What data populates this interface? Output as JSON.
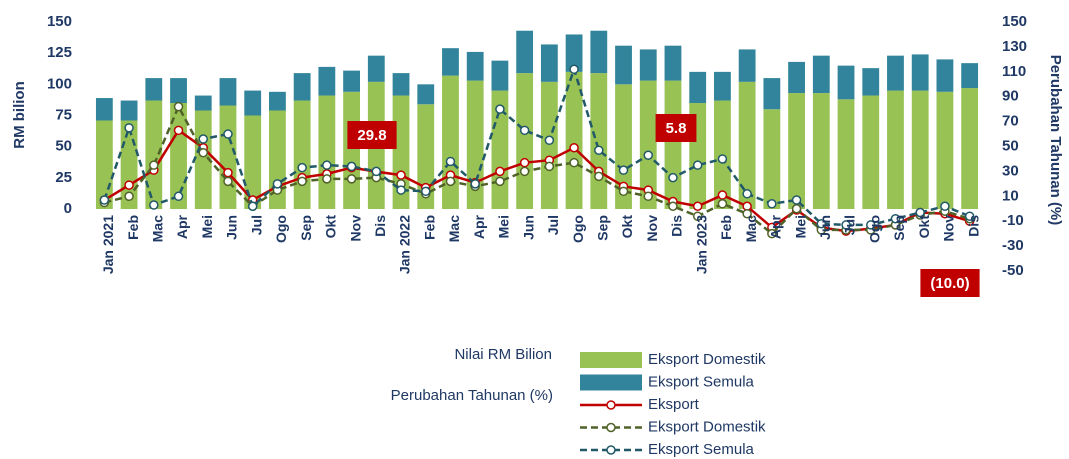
{
  "chart_data": {
    "type": "bar-line",
    "y_label": "RM bilion",
    "y2_label": "Perubahan Tahunan (%)",
    "legend_headings": [
      "Nilai RM Bilion",
      "Perubahan Tahunan (%)"
    ],
    "categories": [
      "Jan 2021",
      "Feb",
      "Mac",
      "Apr",
      "Mei",
      "Jun",
      "Jul",
      "Ogo",
      "Sep",
      "Okt",
      "Nov",
      "Dis",
      "Jan 2022",
      "Feb",
      "Mac",
      "Apr",
      "Mei",
      "Jun",
      "Jul",
      "Ogo",
      "Sep",
      "Okt",
      "Nov",
      "Dis",
      "Jan 2023",
      "Feb",
      "Mac",
      "Apr",
      "Mei",
      "Jun",
      "Jul",
      "Ogo",
      "Sep",
      "Okt",
      "Nov",
      "Dis"
    ],
    "ylim": [
      0,
      150
    ],
    "yticks": [
      0,
      25,
      50,
      75,
      100,
      125,
      150
    ],
    "y2lim": [
      -50,
      150
    ],
    "y2ticks": [
      -50,
      -30,
      -10,
      10,
      30,
      50,
      70,
      90,
      110,
      130,
      150
    ],
    "series": [
      {
        "name": "Eksport Domestik",
        "kind": "bar",
        "color": "#99c255",
        "values": [
          71,
          71,
          87,
          85,
          79,
          83,
          75,
          79,
          87,
          91,
          94,
          102,
          91,
          84,
          107,
          103,
          95,
          109,
          102,
          110,
          109,
          100,
          103,
          103,
          85,
          87,
          102,
          80,
          93,
          93,
          88,
          91,
          95,
          95,
          94,
          97
        ]
      },
      {
        "name": "Eksport Semula",
        "kind": "bar",
        "color": "#31849b",
        "values": [
          18,
          16,
          18,
          20,
          12,
          22,
          20,
          15,
          22,
          23,
          17,
          21,
          18,
          16,
          22,
          23,
          24,
          34,
          30,
          30,
          34,
          31,
          25,
          28,
          25,
          23,
          26,
          25,
          25,
          30,
          27,
          22,
          28,
          29,
          26,
          20
        ]
      },
      {
        "name": "Eksport",
        "kind": "line",
        "axis": "y2",
        "color": "#c00000",
        "dash": false,
        "values": [
          7,
          19,
          31,
          63,
          49,
          29,
          7,
          18,
          25,
          28,
          33,
          29.8,
          27,
          17,
          27,
          21,
          30,
          37,
          39,
          49,
          30,
          18,
          15,
          5.8,
          2,
          11,
          2,
          -15,
          -1,
          -15,
          -18,
          -16,
          -13,
          -3,
          -4,
          -10.0
        ]
      },
      {
        "name": "Eksport Domestik",
        "kind": "line",
        "axis": "y2",
        "color": "#4f6228",
        "dash": true,
        "values": [
          5,
          10,
          35,
          82,
          45,
          22,
          2,
          15,
          22,
          24,
          24,
          25,
          20,
          12,
          22,
          18,
          22,
          30,
          34,
          37,
          26,
          14,
          10,
          2,
          -6,
          4,
          -4,
          -20,
          0,
          -17,
          -17,
          -17,
          -13,
          -5,
          -2,
          -8
        ]
      },
      {
        "name": "Eksport Semula",
        "kind": "line",
        "axis": "y2",
        "color": "#215968",
        "dash": true,
        "values": [
          7,
          65,
          3,
          10,
          56,
          60,
          2,
          20,
          33,
          35,
          34,
          30,
          15,
          14,
          38,
          20,
          80,
          63,
          55,
          112,
          47,
          31,
          43,
          25,
          35,
          40,
          12,
          4,
          7,
          -12,
          -13,
          -13,
          -8,
          -3,
          2,
          -6
        ]
      }
    ],
    "annotations": [
      "29.8",
      "5.8",
      "(10.0)"
    ]
  }
}
